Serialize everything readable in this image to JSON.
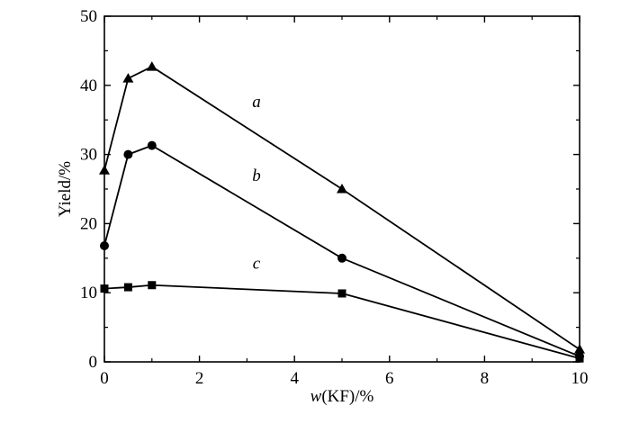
{
  "chart_data": {
    "type": "line",
    "title": "",
    "xlabel_italic": "w",
    "xlabel_rest": "(KF)/%",
    "ylabel": "Yield/%",
    "xlim": [
      0,
      10
    ],
    "ylim": [
      0,
      50
    ],
    "x_ticks": [
      "0",
      "2",
      "4",
      "6",
      "8",
      "10"
    ],
    "y_ticks": [
      "0",
      "10",
      "20",
      "30",
      "40",
      "50"
    ],
    "grid": false,
    "legend": "none",
    "series": [
      {
        "label": "a",
        "marker": "triangle",
        "x": [
          0,
          0.5,
          1,
          5,
          10
        ],
        "y": [
          27.7,
          41.0,
          42.7,
          25.0,
          1.8
        ]
      },
      {
        "label": "b",
        "marker": "circle",
        "x": [
          0,
          0.5,
          1,
          5,
          10
        ],
        "y": [
          16.8,
          30.0,
          31.3,
          15.0,
          0.8
        ]
      },
      {
        "label": "c",
        "marker": "square",
        "x": [
          0,
          0.5,
          1,
          5,
          10
        ],
        "y": [
          10.6,
          10.8,
          11.1,
          9.9,
          0.5
        ]
      }
    ]
  }
}
